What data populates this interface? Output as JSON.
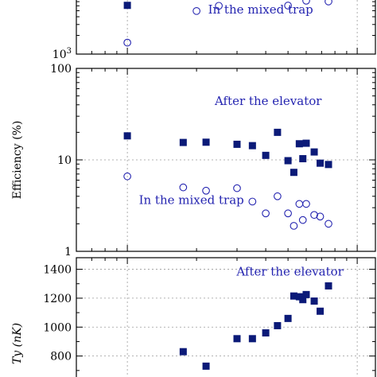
{
  "colors": {
    "marker": "#0b1a78",
    "annotation": "#2424b0"
  },
  "chart_data": [
    {
      "type": "scatter",
      "scale": "log",
      "ylabel": "",
      "ylim": [
        1000,
        10000
      ],
      "xlim": [
        0.6,
        12
      ],
      "ticks": [
        {
          "value": 1000,
          "label": "10",
          "sup": "3"
        }
      ],
      "series": [
        {
          "marker": "filled-square",
          "x": [
            1.0
          ],
          "y": [
            6100
          ]
        },
        {
          "marker": "open-circle",
          "x": [
            1.0,
            2.0,
            2.5,
            5.0,
            6.0,
            7.5
          ],
          "y": [
            1530,
            4950,
            6000,
            6050,
            7250,
            7050
          ]
        }
      ],
      "annotations": [
        {
          "text": "In the mixed trap",
          "x": 3.8,
          "y": 4500
        }
      ]
    },
    {
      "type": "scatter",
      "scale": "log",
      "ylabel": "Efficiency (%)",
      "ylim": [
        1,
        100
      ],
      "xlim": [
        0.6,
        12
      ],
      "ticks": [
        {
          "value": 1,
          "label": "1"
        },
        {
          "value": 10,
          "label": "10"
        },
        {
          "value": 100,
          "label": "100"
        }
      ],
      "series": [
        {
          "marker": "filled-square",
          "x": [
            1.0,
            1.75,
            2.2,
            3.0,
            3.5,
            4.0,
            4.5,
            5.0,
            5.3,
            5.6,
            5.8,
            6.0,
            6.5,
            6.9,
            7.5
          ],
          "y": [
            18.3,
            15.5,
            15.6,
            14.8,
            14.3,
            11.2,
            20,
            9.8,
            7.3,
            15,
            10.3,
            15.2,
            12.2,
            9.2,
            8.9
          ]
        },
        {
          "marker": "open-circle",
          "x": [
            1.0,
            1.75,
            2.2,
            3.0,
            3.5,
            4.0,
            4.5,
            5.0,
            5.3,
            5.6,
            5.8,
            6.0,
            6.5,
            6.9,
            7.5
          ],
          "y": [
            6.6,
            5.0,
            4.6,
            4.9,
            3.5,
            2.6,
            4.0,
            2.6,
            1.9,
            3.3,
            2.2,
            3.3,
            2.5,
            2.4,
            2.0
          ]
        }
      ],
      "annotations": [
        {
          "text": "After the elevator",
          "x": 4.1,
          "y": 40
        },
        {
          "text": "In the mixed trap",
          "x": 1.9,
          "y": 3.3
        }
      ]
    },
    {
      "type": "scatter",
      "scale": "linear",
      "ylabel": "Ty (nK)",
      "ylim": [
        600,
        1480
      ],
      "xlim": [
        0.6,
        12
      ],
      "ticks": [
        {
          "value": 800,
          "label": "800"
        },
        {
          "value": 1000,
          "label": "1000"
        },
        {
          "value": 1200,
          "label": "1200"
        },
        {
          "value": 1400,
          "label": "1400"
        }
      ],
      "series": [
        {
          "marker": "filled-square",
          "x": [
            1.75,
            2.2,
            3.0,
            3.5,
            4.0,
            4.5,
            5.0,
            5.3,
            5.6,
            5.8,
            6.0,
            6.5,
            6.9,
            7.5
          ],
          "y": [
            830,
            730,
            920,
            920,
            960,
            1010,
            1060,
            1215,
            1210,
            1190,
            1225,
            1180,
            1110,
            1285
          ]
        }
      ],
      "annotations": [
        {
          "text": "After the elevator",
          "x": 5.1,
          "y": 1355
        }
      ]
    }
  ]
}
